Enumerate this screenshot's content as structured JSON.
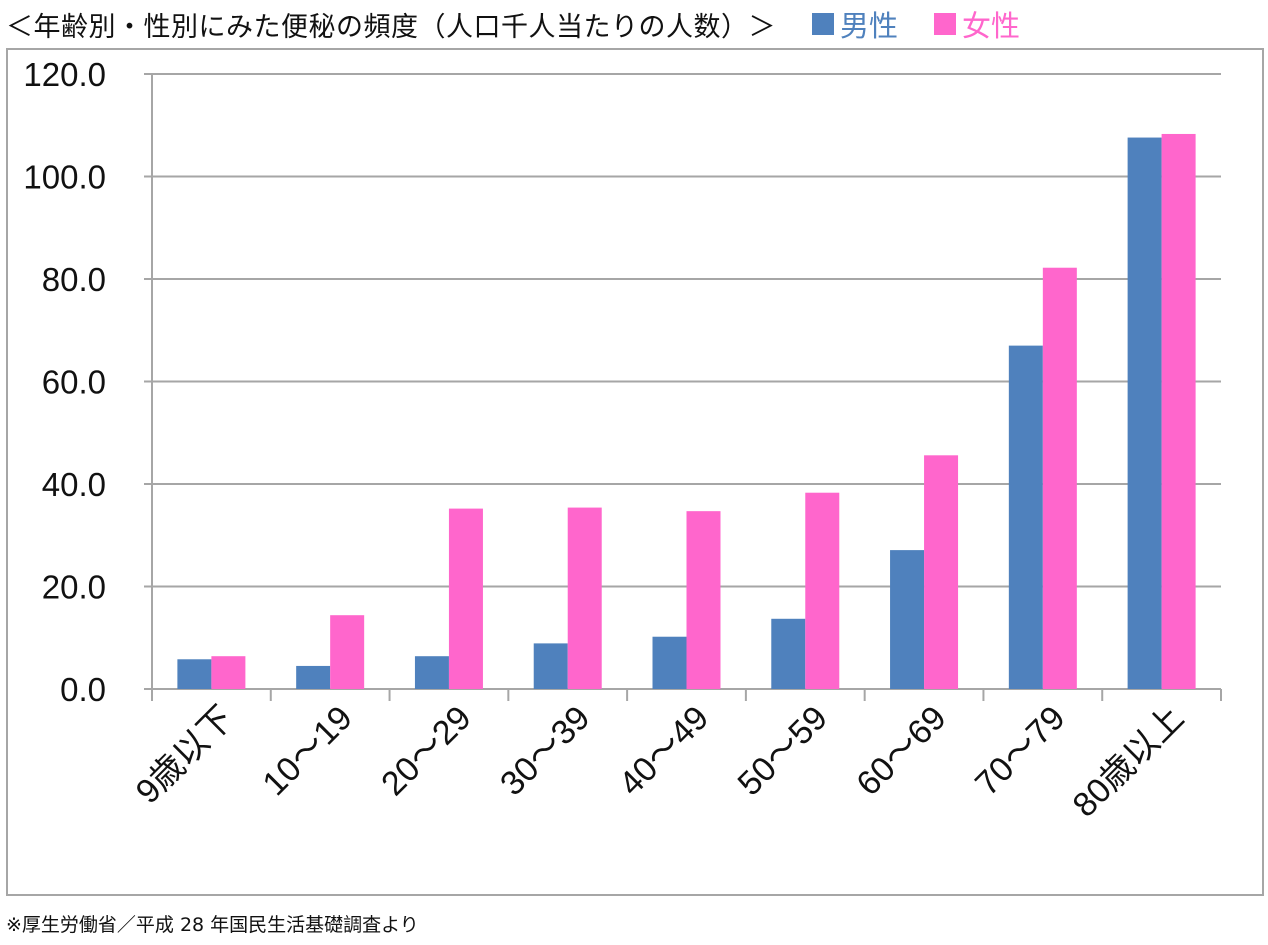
{
  "chart_data": {
    "type": "bar",
    "title": "＜年齢別・性別にみた便秘の頻度（人口千人当たりの人数）＞",
    "xlabel": "",
    "ylabel": "",
    "ylim": [
      0,
      120
    ],
    "yticks": [
      0,
      20,
      40,
      60,
      80,
      100,
      120
    ],
    "ytick_labels": [
      "0.0",
      "20.0",
      "40.0",
      "60.0",
      "80.0",
      "100.0",
      "120.0"
    ],
    "grid": true,
    "legend_position": "top",
    "categories": [
      "9歳以下",
      "10～19",
      "20～29",
      "30～39",
      "40～49",
      "50～59",
      "60～69",
      "70～79",
      "80歳以上"
    ],
    "series": [
      {
        "name": "男性",
        "color": "#4f81bd",
        "values": [
          5.8,
          4.5,
          6.4,
          8.9,
          10.2,
          13.7,
          27.1,
          67.0,
          107.6
        ]
      },
      {
        "name": "女性",
        "color": "#ff66cc",
        "values": [
          6.4,
          14.4,
          35.2,
          35.4,
          34.7,
          38.3,
          45.6,
          82.2,
          108.3
        ]
      }
    ],
    "source": "※厚生労働省／平成 28 年国民生活基礎調査より"
  }
}
